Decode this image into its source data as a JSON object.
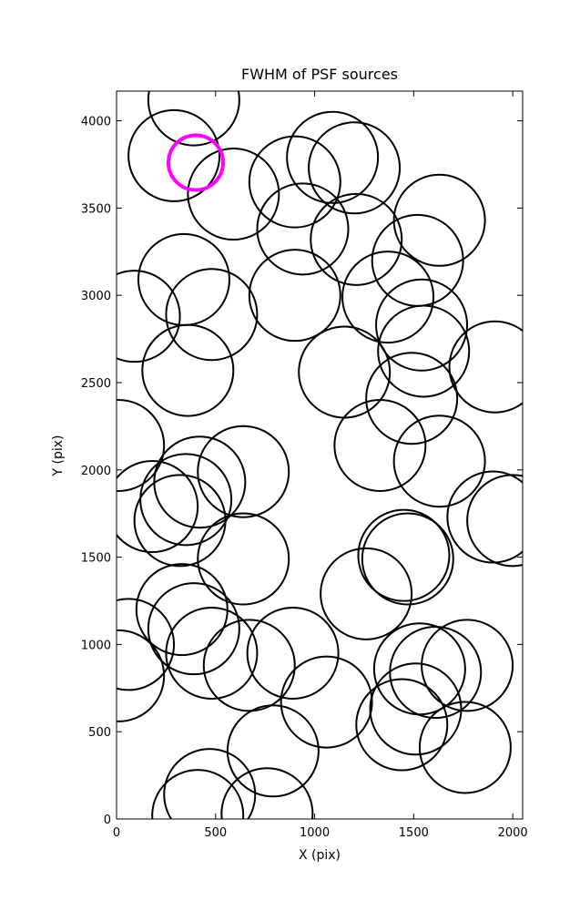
{
  "chart_data": {
    "type": "scatter",
    "title": "FWHM of PSF sources",
    "x_label": "X (pix)",
    "y_label": "Y (pix)",
    "xlim": [
      0,
      2050
    ],
    "ylim": [
      0,
      4170
    ],
    "xticks": [
      0,
      500,
      1000,
      1500,
      2000
    ],
    "yticks": [
      0,
      500,
      1000,
      1500,
      2000,
      2500,
      3000,
      3500,
      4000
    ],
    "series": [
      {
        "color": "#000000",
        "x": [
          390,
          290,
          590,
          1090,
          1200,
          900,
          940,
          1210,
          1630,
          1520,
          340,
          90,
          480,
          900,
          1370,
          1540,
          1550,
          1910,
          360,
          1150,
          1490,
          10,
          1330,
          1630,
          640,
          420,
          350,
          180,
          320,
          1900,
          2000,
          640,
          1450,
          1470,
          1260,
          330,
          390,
          60,
          10,
          480,
          670,
          890,
          1060,
          1530,
          1610,
          1770,
          1510,
          1440,
          1760,
          790,
          470,
          410,
          760
        ],
        "values": [
          4120,
          3800,
          3580,
          3790,
          3730,
          3650,
          3380,
          3320,
          3430,
          3200,
          3090,
          2880,
          2890,
          3000,
          2990,
          2830,
          2680,
          2590,
          2570,
          2560,
          2410,
          2140,
          2140,
          2050,
          1990,
          1930,
          1830,
          1790,
          1710,
          1730,
          1710,
          1490,
          1510,
          1490,
          1290,
          1200,
          1090,
          1000,
          820,
          950,
          880,
          950,
          670,
          860,
          840,
          880,
          630,
          540,
          410,
          390,
          140,
          20,
          30
        ]
      },
      {
        "color": "#ff00ff",
        "x": [
          400
        ],
        "values": [
          3760
        ]
      }
    ]
  }
}
